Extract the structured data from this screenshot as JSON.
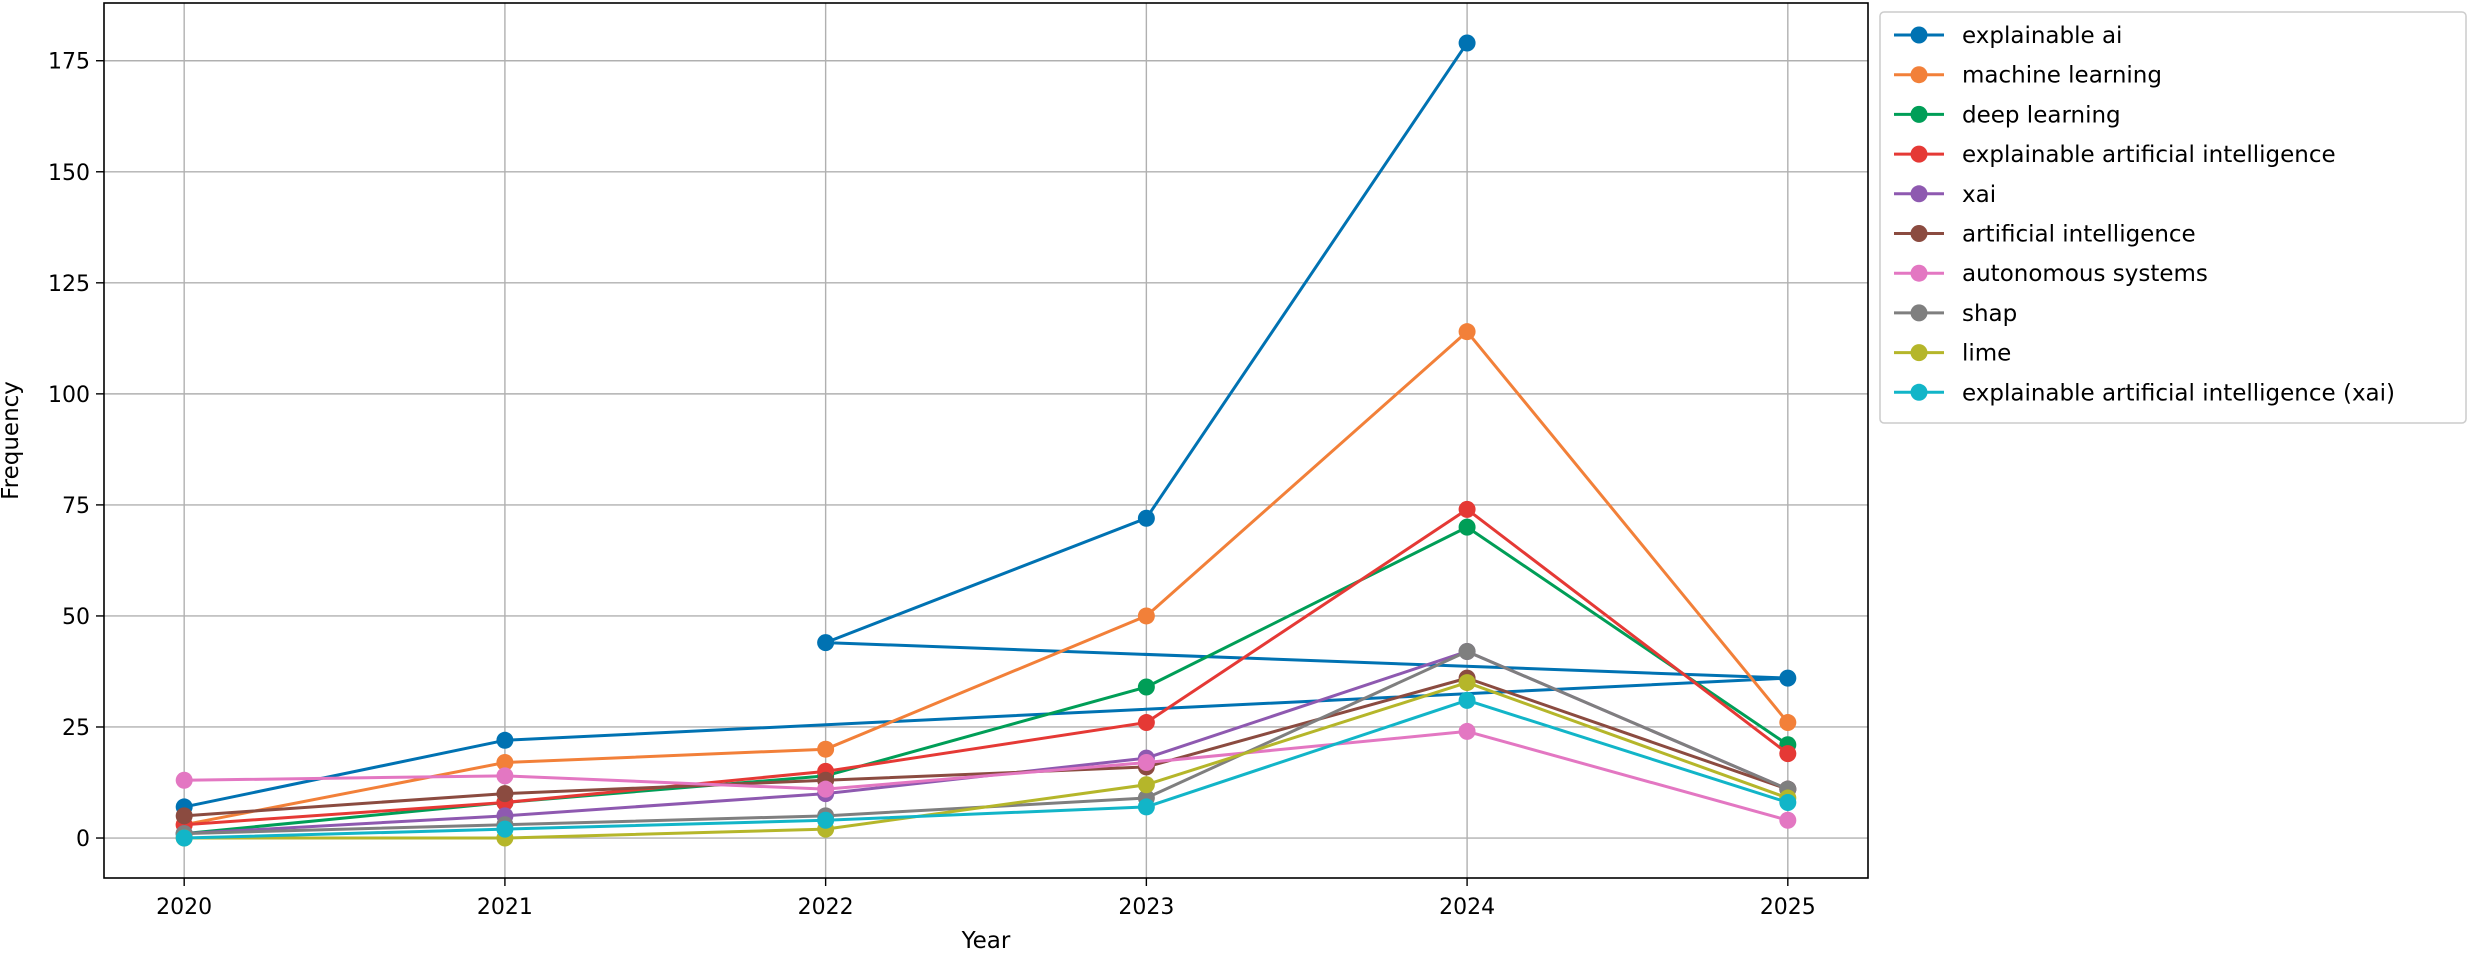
{
  "chart_data": {
    "type": "line",
    "title": "",
    "xlabel": "Year",
    "ylabel": "Frequency",
    "xlim": [
      2019.75,
      2025.25
    ],
    "ylim": [
      -9,
      188
    ],
    "xticks": [
      2020,
      2021,
      2022,
      2023,
      2024,
      2025
    ],
    "yticks": [
      0,
      25,
      50,
      75,
      100,
      125,
      150,
      175
    ],
    "grid": true,
    "legend_position": "outside-top-right",
    "markers": true,
    "series": [
      {
        "name": "explainable ai",
        "color": "#0072B2",
        "points": [
          [
            2020,
            7
          ],
          [
            2021,
            22
          ],
          [
            2025,
            36
          ],
          [
            2022,
            44
          ],
          [
            2023,
            72
          ],
          [
            2024,
            179
          ]
        ]
      },
      {
        "name": "machine learning",
        "color": "#F28039",
        "points": [
          [
            2020,
            3
          ],
          [
            2021,
            17
          ],
          [
            2022,
            20
          ],
          [
            2023,
            50
          ],
          [
            2024,
            114
          ],
          [
            2025,
            26
          ]
        ]
      },
      {
        "name": "deep learning",
        "color": "#009E57",
        "points": [
          [
            2020,
            1
          ],
          [
            2021,
            8
          ],
          [
            2022,
            14
          ],
          [
            2023,
            34
          ],
          [
            2024,
            70
          ],
          [
            2025,
            21
          ]
        ]
      },
      {
        "name": "explainable artificial intelligence",
        "color": "#E53935",
        "points": [
          [
            2020,
            3
          ],
          [
            2021,
            8
          ],
          [
            2022,
            15
          ],
          [
            2023,
            26
          ],
          [
            2024,
            74
          ],
          [
            2025,
            19
          ]
        ]
      },
      {
        "name": "xai",
        "color": "#8E59B0",
        "points": [
          [
            2020,
            1
          ],
          [
            2021,
            5
          ],
          [
            2022,
            10
          ],
          [
            2023,
            18
          ],
          [
            2024,
            42
          ],
          [
            2025,
            11
          ]
        ]
      },
      {
        "name": "artificial intelligence",
        "color": "#8B4B40",
        "points": [
          [
            2020,
            5
          ],
          [
            2021,
            10
          ],
          [
            2022,
            13
          ],
          [
            2023,
            16
          ],
          [
            2024,
            36
          ],
          [
            2025,
            11
          ]
        ]
      },
      {
        "name": "autonomous systems",
        "color": "#E377C2",
        "points": [
          [
            2020,
            13
          ],
          [
            2021,
            14
          ],
          [
            2022,
            11
          ],
          [
            2023,
            17
          ],
          [
            2024,
            24
          ],
          [
            2025,
            4
          ]
        ]
      },
      {
        "name": "shap",
        "color": "#7F7F7F",
        "points": [
          [
            2020,
            1
          ],
          [
            2021,
            3
          ],
          [
            2022,
            5
          ],
          [
            2023,
            9
          ],
          [
            2024,
            42
          ],
          [
            2025,
            11
          ]
        ]
      },
      {
        "name": "lime",
        "color": "#B5B62A",
        "points": [
          [
            2020,
            0
          ],
          [
            2021,
            0
          ],
          [
            2022,
            2
          ],
          [
            2023,
            12
          ],
          [
            2024,
            35
          ],
          [
            2025,
            9
          ]
        ]
      },
      {
        "name": "explainable artificial intelligence (xai)",
        "color": "#12B5C8",
        "points": [
          [
            2020,
            0
          ],
          [
            2021,
            2
          ],
          [
            2022,
            4
          ],
          [
            2023,
            7
          ],
          [
            2024,
            31
          ],
          [
            2025,
            8
          ]
        ]
      }
    ]
  }
}
